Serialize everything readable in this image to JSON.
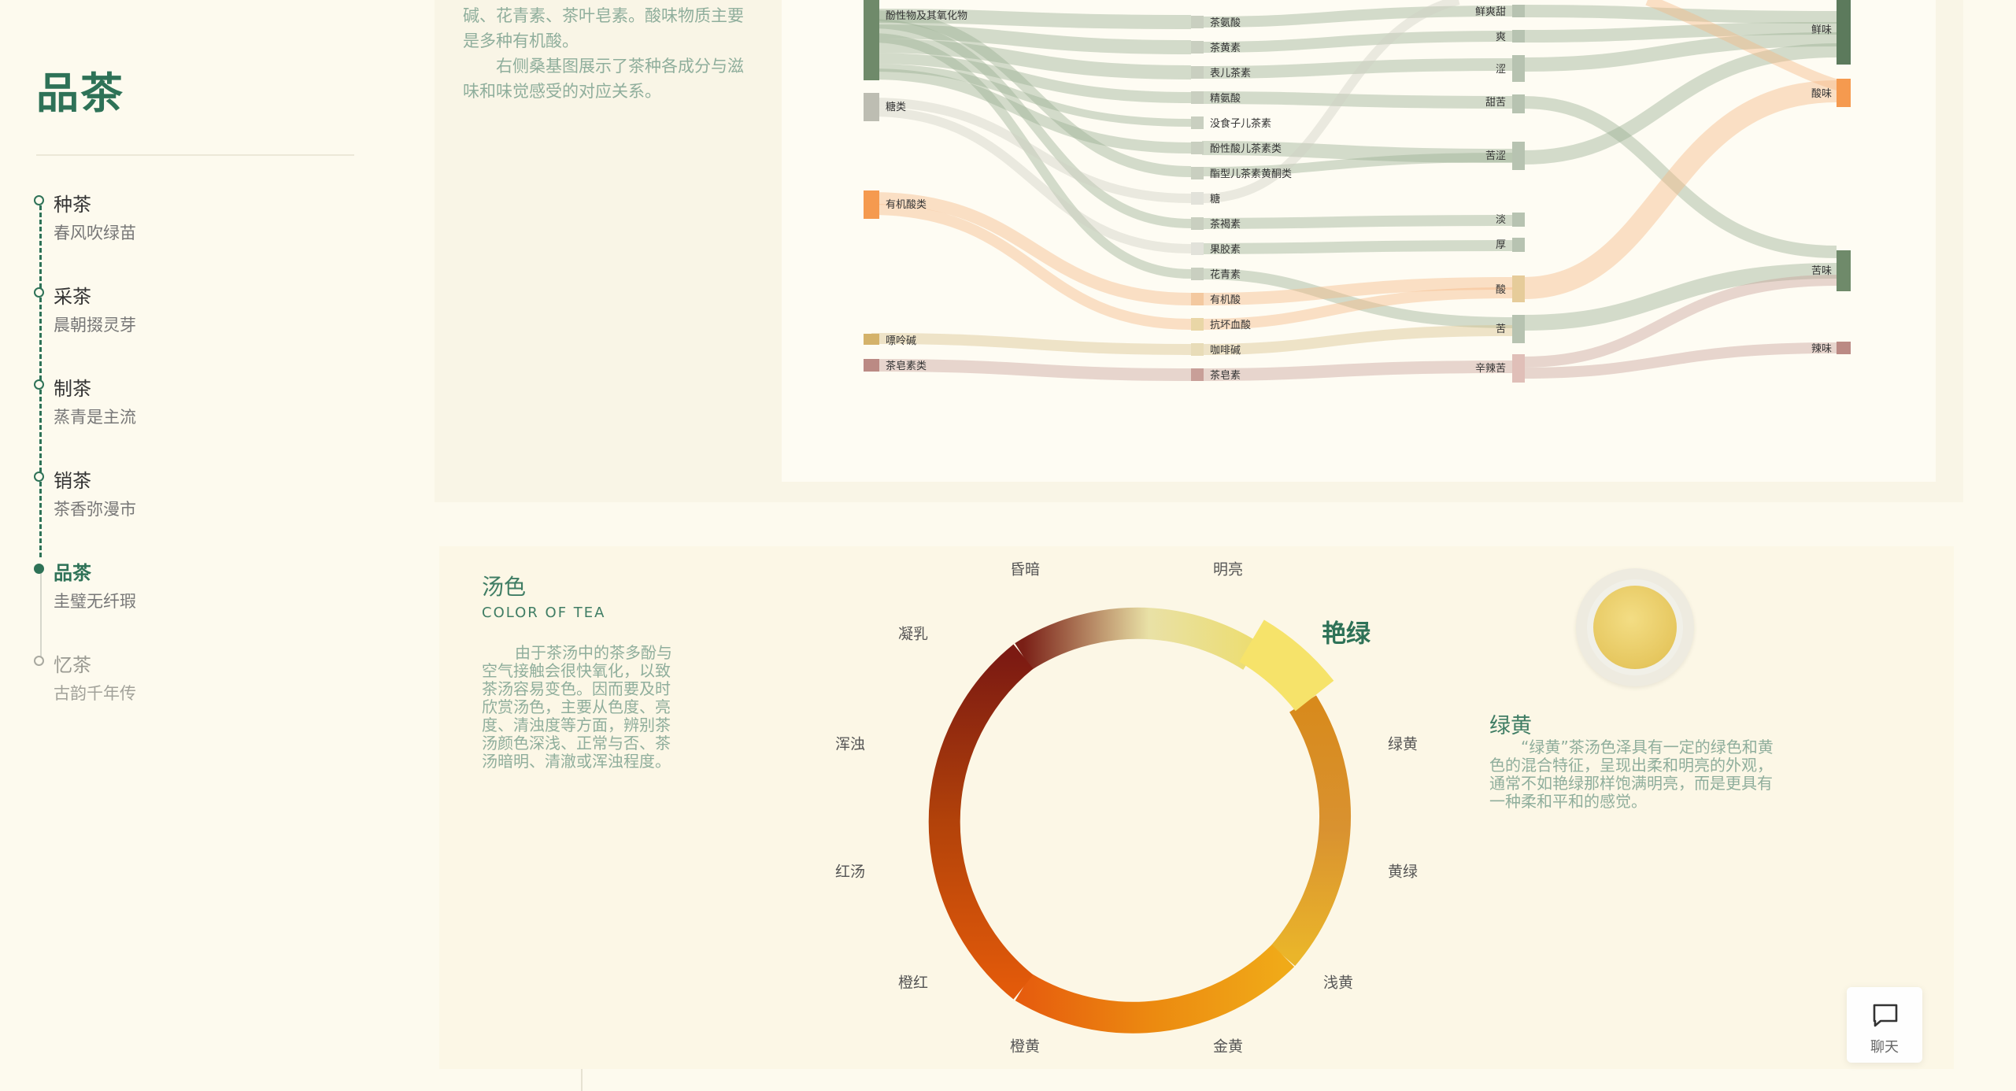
{
  "sidebar": {
    "brand": "品茶",
    "items": [
      {
        "title": "种茶",
        "subtitle": "春风吹绿苗"
      },
      {
        "title": "采茶",
        "subtitle": "晨朝掇灵芽"
      },
      {
        "title": "制茶",
        "subtitle": "蒸青是主流"
      },
      {
        "title": "销茶",
        "subtitle": "茶香弥漫市"
      },
      {
        "title": "品茶",
        "subtitle": "圭璧无纤瑕"
      },
      {
        "title": "忆茶",
        "subtitle": "古韵千年传"
      }
    ]
  },
  "composition": {
    "paragraph_1": "碱、花青素、茶叶皂素。酸味物质主要是多种有机酸。",
    "paragraph_2": "右侧桑基图展示了茶种各成分与滋味和味觉感受的对应关系。"
  },
  "sankey": {
    "left_nodes": [
      "酚性物及其氧化物",
      "糖类",
      "有机酸类",
      "嘌呤碱",
      "茶皂素类"
    ],
    "mid_nodes": [
      "茶氨酸",
      "茶黄素",
      "表儿茶素",
      "精氨酸",
      "没食子儿茶素",
      "酚性酸儿茶素类",
      "酯型儿茶素黄酮类",
      "糖",
      "茶褐素",
      "果胶素",
      "花青素",
      "有机酸",
      "抗坏血酸",
      "咖啡碱",
      "茶皂素"
    ],
    "taste_nodes": [
      "鲜爽甜",
      "爽",
      "涩",
      "甜苦",
      "苦涩",
      "淡",
      "厚",
      "酸",
      "苦",
      "辛辣苦"
    ],
    "sense_nodes": [
      "鲜味",
      "酸味",
      "苦味",
      "辣味"
    ]
  },
  "tea_color": {
    "title": "汤色",
    "subtitle": "COLOR OF TEA",
    "description": "由于茶汤中的茶多酚与空气接触会很快氧化，以致茶汤容易变色。因而要及时欣赏汤色，主要从色度、亮度、清浊度等方面，辨别茶汤颜色深浅、正常与否、茶汤暗明、清澈或浑浊程度。",
    "ring_labels": [
      "明亮",
      "艳绿",
      "绿黄",
      "黄绿",
      "浅黄",
      "金黄",
      "橙黄",
      "橙红",
      "红汤",
      "浑浊",
      "凝乳",
      "昏暗"
    ],
    "selected": "艳绿",
    "detail_title": "绿黄",
    "detail_text": "“绿黄”茶汤色泽具有一定的绿色和黄色的混合特征，呈现出柔和明亮的外观，通常不如艳绿那样饱满明亮，而是更具有一种柔和平和的感觉。"
  },
  "chat": {
    "label": "聊天"
  },
  "colors": {
    "accent": "#2e7257",
    "muted_text": "#8fae9c",
    "panel": "#fcf7e6"
  },
  "icons": {
    "chat": "chat-bubble-icon"
  }
}
